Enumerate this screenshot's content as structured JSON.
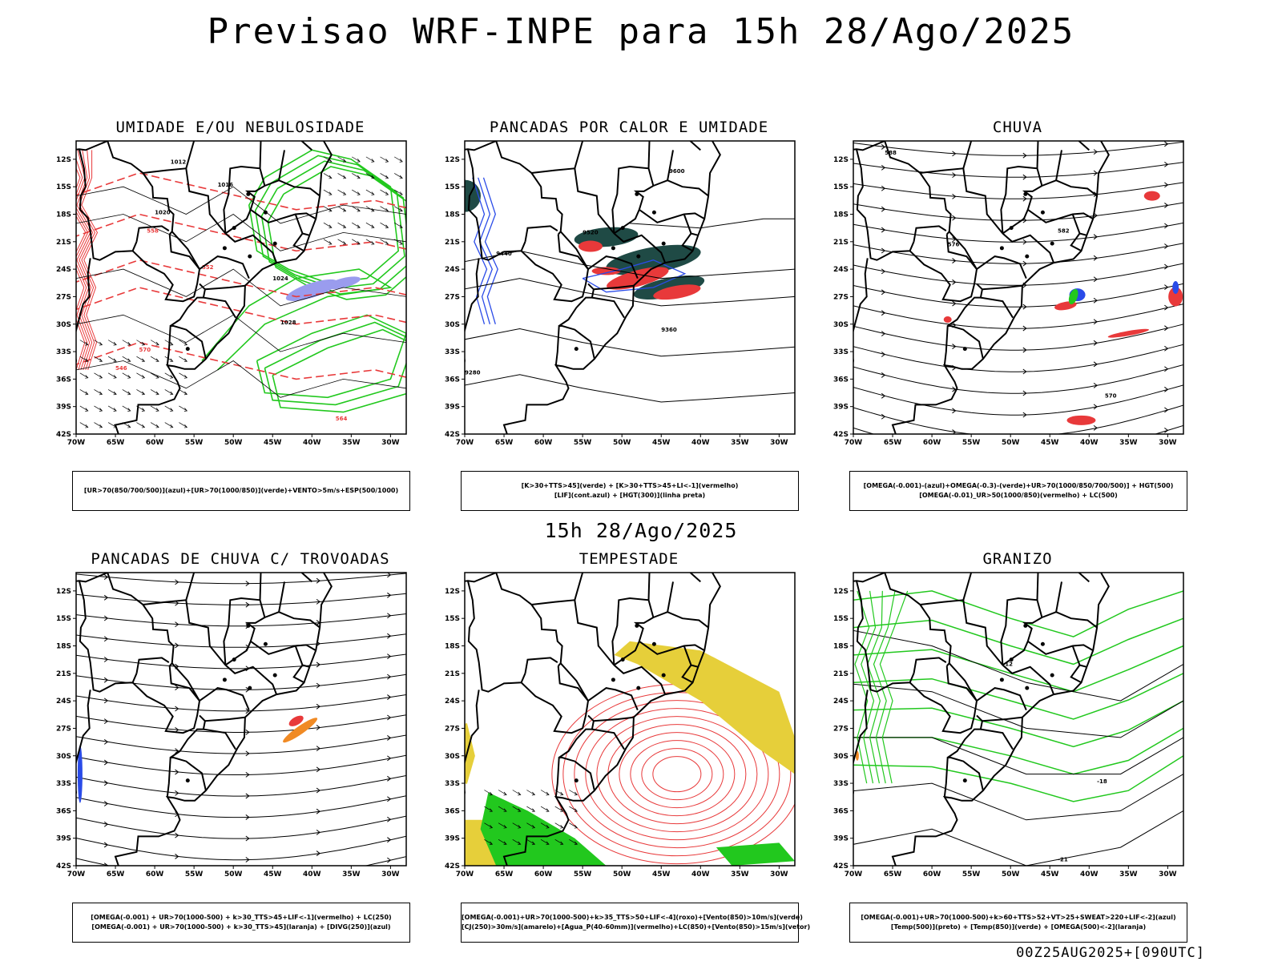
{
  "header": {
    "title": "Previsao WRF-INPE  para 15h 28/Ago/2025",
    "subtitle": "15h 28/Ago/2025",
    "footer": "00Z25AUG2025+[090UTC]"
  },
  "axes": {
    "lat_labels": [
      "12S",
      "15S",
      "18S",
      "21S",
      "24S",
      "27S",
      "30S",
      "33S",
      "36S",
      "39S",
      "42S"
    ],
    "lon_labels": [
      "70W",
      "65W",
      "60W",
      "55W",
      "50W",
      "45W",
      "40W",
      "35W",
      "30W"
    ]
  },
  "colors": {
    "red": "#e8393a",
    "green": "#22c81e",
    "blue": "#2a4be8",
    "lavender": "#9a9cee",
    "darkteal": "#1f4a45",
    "orange": "#f08a24",
    "yellow": "#e6cf3a",
    "black": "#000000"
  },
  "panels": [
    {
      "title": "UMIDADE E/OU NEBULOSIDADE",
      "legend": [
        "[UR>70(850/700/500)](azul)+[UR>70(1000/850)](verde)+VENTO>5m/s+ESP(500/1000)"
      ],
      "contour_labels": [
        "1012",
        "1016",
        "1020",
        "1024",
        "1028",
        "570",
        "564",
        "558",
        "552",
        "546"
      ]
    },
    {
      "title": "PANCADAS POR CALOR E UMIDADE",
      "legend": [
        "[K>30+TTS>45](verde) + [K>30+TTS>45+LI<-1](vermelho)",
        "[LIF](cont.azul) + [HGT(300)](linha preta)"
      ],
      "contour_labels": [
        "9600",
        "9520",
        "9440",
        "9360",
        "9280"
      ]
    },
    {
      "title": "CHUVA",
      "legend": [
        "[OMEGA(-0.001)-(azul)+OMEGA(-0.3)-(verde)+UR>70(1000/850/700/500)] + HGT(500)",
        "[OMEGA(-0.01)_UR>50(1000/850)(vermelho) + LC(500)"
      ],
      "contour_labels": [
        "588",
        "582",
        "576",
        "570"
      ]
    },
    {
      "title": "PANCADAS DE CHUVA C/ TROVOADAS",
      "legend": [
        "[OMEGA(-0.001) + UR>70(1000-500) + k>30_TTS>45+LIF<-1](vermelho) + LC(250)",
        "[OMEGA(-0.001) + UR>70(1000-500) + k>30_TTS>45](laranja) + [DIVG(250)](azul)"
      ],
      "contour_labels": []
    },
    {
      "title": "TEMPESTADE",
      "legend": [
        "[OMEGA(-0.001)+UR>70(1000-500)+k>35_TTS>50+LIF<-4](roxo)+[Vento(850)>10m/s](verde)",
        "[CJ(250)>30m/s](amarelo)+[Agua_P(40-60mm)](vermelho)+LC(850)+[Vento(850)>15m/s](vetor)"
      ],
      "contour_labels": []
    },
    {
      "title": "GRANIZO",
      "legend": [
        "[OMEGA(-0.001)+UR>70(1000-500)+k>60+TTS>52+VT>25+SWEAT>220+LIF<-2](azul)",
        "[Temp(500)](preto) + [Temp(850)](verde) + [OMEGA(500)<-2](laranja)"
      ],
      "contour_labels": [
        "-12",
        "-18",
        "-21"
      ]
    }
  ]
}
